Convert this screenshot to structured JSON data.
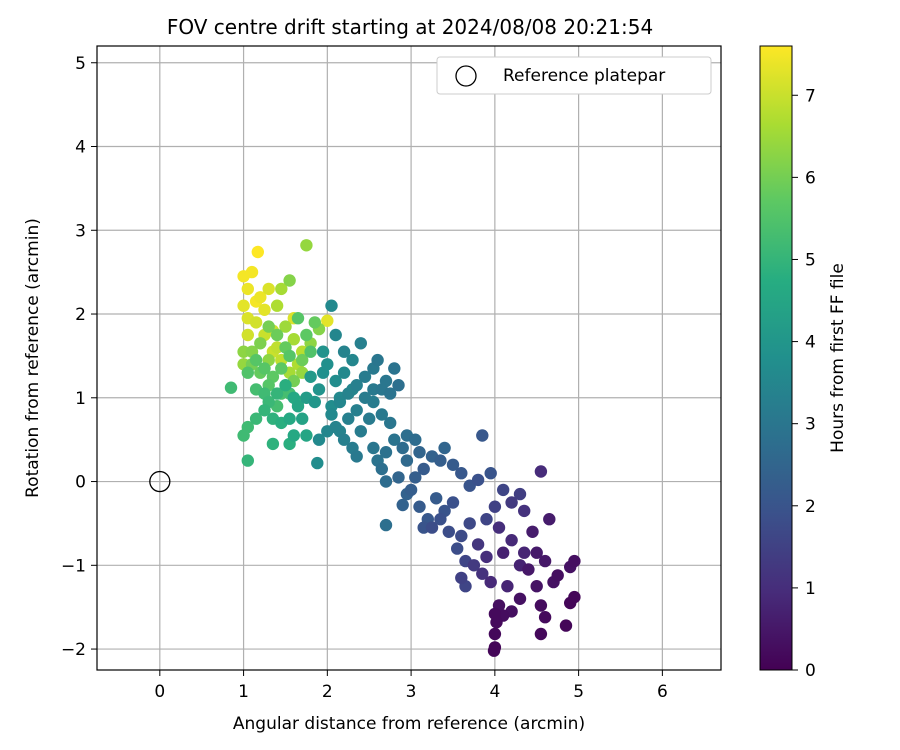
{
  "chart_data": {
    "type": "scatter",
    "title": "FOV centre drift starting at 2024/08/08 20:21:54",
    "xlabel": "Angular distance from reference (arcmin)",
    "ylabel": "Rotation from reference (arcmin)",
    "xlim": [
      -0.75,
      6.7
    ],
    "ylim": [
      -2.25,
      5.2
    ],
    "xticks": [
      0,
      1,
      2,
      3,
      4,
      5,
      6
    ],
    "yticks": [
      -2,
      -1,
      0,
      1,
      2,
      3,
      4,
      5
    ],
    "grid": true,
    "legend": {
      "position": "top-right",
      "entries": [
        "Reference platepar"
      ]
    },
    "reference_point": {
      "x": 0,
      "y": 0
    },
    "colorbar": {
      "label": "Hours from first FF file",
      "min": 0,
      "max": 7.6,
      "ticks": [
        0,
        1,
        2,
        3,
        4,
        5,
        6,
        7
      ],
      "colormap": "viridis"
    },
    "points": [
      [
        4.0,
        -1.98,
        0.1
      ],
      [
        3.99,
        -2.02,
        0.1
      ],
      [
        4.0,
        -1.82,
        0.15
      ],
      [
        4.02,
        -1.68,
        0.2
      ],
      [
        4.0,
        -1.58,
        0.2
      ],
      [
        4.05,
        -1.48,
        0.3
      ],
      [
        4.1,
        -1.6,
        0.25
      ],
      [
        4.2,
        -1.55,
        0.3
      ],
      [
        4.3,
        -1.4,
        0.35
      ],
      [
        4.55,
        -1.82,
        0.15
      ],
      [
        4.6,
        -1.62,
        0.2
      ],
      [
        4.85,
        -1.72,
        0.1
      ],
      [
        4.9,
        -1.45,
        0.1
      ],
      [
        4.95,
        -1.38,
        0.1
      ],
      [
        4.55,
        -1.48,
        0.25
      ],
      [
        4.75,
        -1.12,
        0.3
      ],
      [
        4.9,
        -1.02,
        0.35
      ],
      [
        4.95,
        -0.95,
        0.3
      ],
      [
        4.7,
        -1.2,
        0.35
      ],
      [
        4.5,
        -1.25,
        0.4
      ],
      [
        4.4,
        -1.05,
        0.5
      ],
      [
        4.6,
        -0.95,
        0.5
      ],
      [
        4.5,
        -0.85,
        0.55
      ],
      [
        4.45,
        -0.6,
        0.6
      ],
      [
        4.65,
        -0.45,
        0.6
      ],
      [
        4.55,
        0.12,
        0.95
      ],
      [
        3.85,
        0.55,
        2.1
      ],
      [
        3.95,
        0.1,
        2.0
      ],
      [
        3.8,
        0.02,
        1.9
      ],
      [
        4.1,
        -0.1,
        1.6
      ],
      [
        4.2,
        -0.25,
        1.3
      ],
      [
        4.3,
        -0.15,
        1.4
      ],
      [
        4.35,
        -0.35,
        1.1
      ],
      [
        4.0,
        -0.3,
        1.5
      ],
      [
        3.9,
        -0.45,
        1.6
      ],
      [
        3.7,
        -0.5,
        1.7
      ],
      [
        3.6,
        -0.65,
        1.75
      ],
      [
        3.55,
        -0.8,
        1.8
      ],
      [
        3.65,
        -0.95,
        1.6
      ],
      [
        3.75,
        -1.0,
        1.3
      ],
      [
        3.85,
        -1.1,
        1.1
      ],
      [
        3.95,
        -1.2,
        0.9
      ],
      [
        4.15,
        -1.25,
        0.8
      ],
      [
        4.3,
        -1.0,
        0.75
      ],
      [
        4.35,
        -0.85,
        0.8
      ],
      [
        4.2,
        -0.7,
        0.9
      ],
      [
        4.05,
        -0.55,
        1.0
      ],
      [
        4.1,
        -0.85,
        0.7
      ],
      [
        3.9,
        -0.9,
        1.0
      ],
      [
        3.8,
        -0.75,
        1.2
      ],
      [
        3.6,
        -1.15,
        1.5
      ],
      [
        3.65,
        -1.25,
        1.6
      ],
      [
        3.4,
        -0.35,
        2.0
      ],
      [
        3.3,
        -0.2,
        2.2
      ],
      [
        3.2,
        -0.45,
        2.1
      ],
      [
        3.1,
        -0.3,
        2.2
      ],
      [
        3.0,
        -0.1,
        2.3
      ],
      [
        2.95,
        -0.15,
        2.4
      ],
      [
        3.05,
        0.05,
        2.3
      ],
      [
        3.15,
        0.15,
        2.2
      ],
      [
        3.25,
        0.3,
        2.4
      ],
      [
        3.35,
        0.25,
        2.3
      ],
      [
        3.4,
        0.4,
        2.5
      ],
      [
        3.5,
        0.2,
        2.2
      ],
      [
        3.6,
        0.1,
        2.1
      ],
      [
        3.7,
        -0.05,
        2.0
      ],
      [
        3.5,
        -0.25,
        1.9
      ],
      [
        3.35,
        -0.45,
        1.9
      ],
      [
        3.45,
        -0.6,
        1.8
      ],
      [
        3.25,
        -0.55,
        1.8
      ],
      [
        3.15,
        -0.55,
        2.0
      ],
      [
        2.9,
        -0.28,
        2.4
      ],
      [
        2.85,
        0.05,
        2.5
      ],
      [
        2.95,
        0.25,
        2.6
      ],
      [
        2.9,
        0.4,
        2.7
      ],
      [
        2.95,
        0.55,
        2.8
      ],
      [
        3.05,
        0.5,
        2.7
      ],
      [
        3.1,
        0.35,
        2.5
      ],
      [
        2.7,
        -0.52,
        2.8
      ],
      [
        2.7,
        0.0,
        2.7
      ],
      [
        2.65,
        0.15,
        2.8
      ],
      [
        2.6,
        0.25,
        2.9
      ],
      [
        2.55,
        0.4,
        3.0
      ],
      [
        2.7,
        0.35,
        2.85
      ],
      [
        2.8,
        0.5,
        2.9
      ],
      [
        2.75,
        0.7,
        3.0
      ],
      [
        2.65,
        0.8,
        3.1
      ],
      [
        2.55,
        0.95,
        3.2
      ],
      [
        2.5,
        0.75,
        3.15
      ],
      [
        2.4,
        0.6,
        3.2
      ],
      [
        2.3,
        0.4,
        3.2
      ],
      [
        2.35,
        0.3,
        3.1
      ],
      [
        2.2,
        0.5,
        3.3
      ],
      [
        2.1,
        0.65,
        3.4
      ],
      [
        2.0,
        0.6,
        3.5
      ],
      [
        1.9,
        0.5,
        3.6
      ],
      [
        1.88,
        0.22,
        3.7
      ],
      [
        2.05,
        0.8,
        3.6
      ],
      [
        2.15,
        0.95,
        3.5
      ],
      [
        2.25,
        1.05,
        3.4
      ],
      [
        2.35,
        1.15,
        3.3
      ],
      [
        2.45,
        1.25,
        3.2
      ],
      [
        2.55,
        1.35,
        3.1
      ],
      [
        2.6,
        1.45,
        3.0
      ],
      [
        2.7,
        1.2,
        3.0
      ],
      [
        2.8,
        1.35,
        2.9
      ],
      [
        2.85,
        1.15,
        2.8
      ],
      [
        2.75,
        1.05,
        2.9
      ],
      [
        2.65,
        1.1,
        3.0
      ],
      [
        2.55,
        1.1,
        3.1
      ],
      [
        2.45,
        1.0,
        3.2
      ],
      [
        2.35,
        0.85,
        3.3
      ],
      [
        2.25,
        0.75,
        3.3
      ],
      [
        2.15,
        0.6,
        3.4
      ],
      [
        2.4,
        1.65,
        3.3
      ],
      [
        2.2,
        1.55,
        3.4
      ],
      [
        2.1,
        1.75,
        3.5
      ],
      [
        2.05,
        2.1,
        3.6
      ],
      [
        2.3,
        1.45,
        3.5
      ],
      [
        1.95,
        1.3,
        3.8
      ],
      [
        1.9,
        1.1,
        3.9
      ],
      [
        1.85,
        0.95,
        4.0
      ],
      [
        1.75,
        1.0,
        4.2
      ],
      [
        1.8,
        1.25,
        4.1
      ],
      [
        1.95,
        1.55,
        3.9
      ],
      [
        2.0,
        1.4,
        3.8
      ],
      [
        2.1,
        1.2,
        3.7
      ],
      [
        2.2,
        1.3,
        3.6
      ],
      [
        2.3,
        1.1,
        3.5
      ],
      [
        2.15,
        1.0,
        3.6
      ],
      [
        2.05,
        0.9,
        3.7
      ],
      [
        1.65,
        0.9,
        4.5
      ],
      [
        1.55,
        0.75,
        4.6
      ],
      [
        1.45,
        0.7,
        4.8
      ],
      [
        1.35,
        0.75,
        4.9
      ],
      [
        1.25,
        0.85,
        5.0
      ],
      [
        1.15,
        0.75,
        5.1
      ],
      [
        1.05,
        0.65,
        5.2
      ],
      [
        1.0,
        0.55,
        5.2
      ],
      [
        1.05,
        0.25,
        5.0
      ],
      [
        1.35,
        0.45,
        4.9
      ],
      [
        1.55,
        0.45,
        4.8
      ],
      [
        1.6,
        0.55,
        4.6
      ],
      [
        1.75,
        0.55,
        4.5
      ],
      [
        1.7,
        0.75,
        4.4
      ],
      [
        1.6,
        1.0,
        4.6
      ],
      [
        1.5,
        1.15,
        4.8
      ],
      [
        1.4,
        1.05,
        5.0
      ],
      [
        1.3,
        0.95,
        5.1
      ],
      [
        1.25,
        1.05,
        5.2
      ],
      [
        1.15,
        1.1,
        5.3
      ],
      [
        0.85,
        1.12,
        5.2
      ],
      [
        1.05,
        1.3,
        5.5
      ],
      [
        1.15,
        1.45,
        5.6
      ],
      [
        1.25,
        1.35,
        5.6
      ],
      [
        1.35,
        1.25,
        5.7
      ],
      [
        1.45,
        1.35,
        5.7
      ],
      [
        1.55,
        1.5,
        5.6
      ],
      [
        1.5,
        1.6,
        5.8
      ],
      [
        1.4,
        1.75,
        5.9
      ],
      [
        1.3,
        1.85,
        6.0
      ],
      [
        1.2,
        1.65,
        6.1
      ],
      [
        1.1,
        1.55,
        6.2
      ],
      [
        1.0,
        1.55,
        6.3
      ],
      [
        1.0,
        1.4,
        6.4
      ],
      [
        1.65,
        1.95,
        5.6
      ],
      [
        1.75,
        1.75,
        5.7
      ],
      [
        1.85,
        1.9,
        5.8
      ],
      [
        1.8,
        1.55,
        5.5
      ],
      [
        1.7,
        1.45,
        5.9
      ],
      [
        1.6,
        1.2,
        6.0
      ],
      [
        1.55,
        2.4,
        6.2
      ],
      [
        1.75,
        2.82,
        6.4
      ],
      [
        1.45,
        2.3,
        6.6
      ],
      [
        1.4,
        2.1,
        6.7
      ],
      [
        1.5,
        1.85,
        6.5
      ],
      [
        1.6,
        1.7,
        6.6
      ],
      [
        1.7,
        1.55,
        6.8
      ],
      [
        1.65,
        1.4,
        6.7
      ],
      [
        1.55,
        1.3,
        6.6
      ],
      [
        1.45,
        1.45,
        6.9
      ],
      [
        1.35,
        1.55,
        7.0
      ],
      [
        1.25,
        1.75,
        7.0
      ],
      [
        1.15,
        1.9,
        7.1
      ],
      [
        1.05,
        1.95,
        7.2
      ],
      [
        1.0,
        2.1,
        7.3
      ],
      [
        1.05,
        2.3,
        7.4
      ],
      [
        1.1,
        2.5,
        7.5
      ],
      [
        1.0,
        2.45,
        7.5
      ],
      [
        1.2,
        2.2,
        7.4
      ],
      [
        1.25,
        2.05,
        7.3
      ],
      [
        1.15,
        2.15,
        7.5
      ],
      [
        1.3,
        2.3,
        7.2
      ],
      [
        1.17,
        2.74,
        7.6
      ],
      [
        2.0,
        1.92,
        7.3
      ],
      [
        1.6,
        1.95,
        7.2
      ],
      [
        1.05,
        1.75,
        7.1
      ],
      [
        1.35,
        1.8,
        7.0
      ],
      [
        1.4,
        1.6,
        6.9
      ],
      [
        1.7,
        1.3,
        6.4
      ],
      [
        1.8,
        1.65,
        6.3
      ],
      [
        1.9,
        1.82,
        6.2
      ],
      [
        1.45,
        1.05,
        5.4
      ],
      [
        1.55,
        1.05,
        5.3
      ],
      [
        1.65,
        0.95,
        5.0
      ],
      [
        1.4,
        0.9,
        5.3
      ],
      [
        1.3,
        1.15,
        5.6
      ],
      [
        1.2,
        1.3,
        5.8
      ],
      [
        1.1,
        1.4,
        6.0
      ],
      [
        1.3,
        1.45,
        6.3
      ]
    ]
  }
}
